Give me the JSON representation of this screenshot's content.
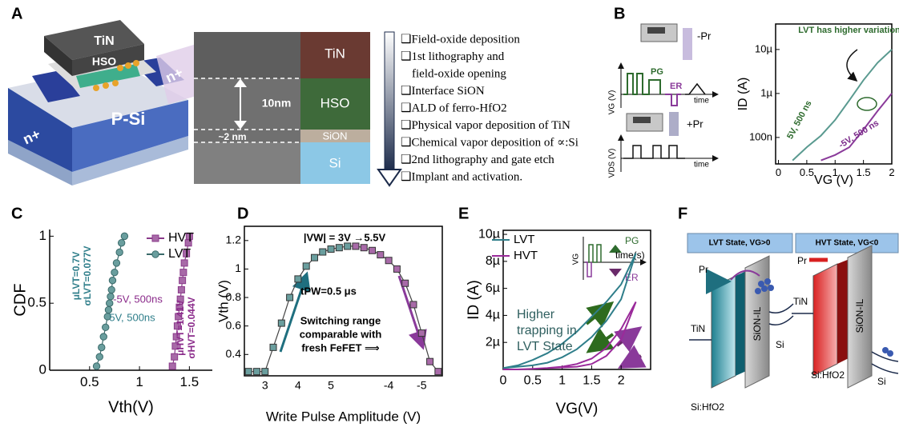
{
  "panel_labels": [
    "A",
    "B",
    "C",
    "D",
    "E",
    "F"
  ],
  "panel_a": {
    "device_labels": [
      "TiN",
      "HSO",
      "n+",
      "P-Si",
      "n+"
    ],
    "tem_labels": [
      "TiN",
      "10nm",
      "HSO",
      "~2 nm",
      "SiON",
      "Si"
    ],
    "process_lines": [
      "❑Field-oxide deposition",
      "❑1st lithography and",
      "field-oxide opening",
      "❑Interface SiON",
      "❑ALD of ferro-HfO2",
      "❑Physical vapor deposition of TiN",
      "❑Chemical vapor deposition of ∝:Si",
      "❑2nd lithography and gate etch",
      "❑Implant and activation."
    ]
  },
  "panel_b_schematic": {
    "labels": [
      "-Pr",
      "VG (V)",
      "PG",
      "ER",
      "time",
      "+Pr",
      "VDS (V)",
      "time"
    ]
  },
  "panel_e_inset": {
    "labels": [
      "PG",
      "time(s)",
      "ER",
      "VG"
    ]
  },
  "panel_f": {
    "headers": [
      "LVT State, VG>0",
      "HVT State, VG<0"
    ],
    "labels": [
      "Pr",
      "TiN",
      "SiON-IL",
      "Si",
      "Si:HfO2",
      "Pr",
      "TiN",
      "SiON-IL",
      "Si",
      "Si:HfO2"
    ]
  },
  "chart_data": [
    {
      "type": "line",
      "xlabel": "VG (V)",
      "ylabel": "ID (A)",
      "log_y": true,
      "xlim": [
        -0.05,
        2
      ],
      "xticks": [
        0,
        0.5,
        1,
        1.5,
        2
      ],
      "ylim": [
        2.5e-08,
        3.8e-05
      ],
      "yticks": [
        {
          "value": 1e-07,
          "label": "100n"
        },
        {
          "value": 1e-06,
          "label": "1µ"
        },
        {
          "value": 1e-05,
          "label": "10µ"
        }
      ],
      "annotations": [
        "LVT has higher variation",
        "5V, 500 ns",
        "-5V, 500 ns"
      ],
      "series": [
        {
          "color": "#5a9a90",
          "x": [
            0.25,
            0.5,
            0.75,
            1,
            1.25,
            1.5,
            1.75,
            2
          ],
          "values": [
            3e-08,
            6e-08,
            1.1e-07,
            2.5e-07,
            7e-07,
            2e-06,
            5e-06,
            1e-05
          ]
        },
        {
          "color": "#8a3a9a",
          "x": [
            0.75,
            1,
            1.25,
            1.5,
            1.75,
            2
          ],
          "values": [
            3e-08,
            4e-08,
            6e-08,
            1.5e-07,
            4e-07,
            1e-06
          ]
        }
      ]
    },
    {
      "type": "line",
      "xlabel": "Vth(V)",
      "ylabel": "CDF",
      "xlim": [
        0.1,
        1.73
      ],
      "xticks": [
        0.5,
        1,
        1.5
      ],
      "ylim": [
        0,
        1.05
      ],
      "yticks": [
        0,
        0.5,
        1
      ],
      "annotations": [
        "μLVT=0.7V",
        "σLVT=0.077V",
        "μHVT=1.41V",
        "σHVT=0.044V",
        "-5V, 500ns",
        "5V, 500ns"
      ],
      "series": [
        {
          "name": "HVT",
          "color": "#8a3a8a",
          "marker": "square",
          "marker_fill": "#a86aa8",
          "x": [
            1.33,
            1.35,
            1.36,
            1.37,
            1.38,
            1.39,
            1.4,
            1.41,
            1.42,
            1.43,
            1.44,
            1.45,
            1.47,
            1.49,
            1.5
          ],
          "values": [
            0.03,
            0.1,
            0.18,
            0.25,
            0.33,
            0.4,
            0.47,
            0.53,
            0.6,
            0.67,
            0.73,
            0.8,
            0.87,
            0.95,
            1
          ]
        },
        {
          "name": "LVT",
          "color": "#3a6a6a",
          "marker": "circle",
          "marker_fill": "#6a9e9e",
          "x": [
            0.57,
            0.6,
            0.62,
            0.64,
            0.66,
            0.68,
            0.69,
            0.7,
            0.71,
            0.72,
            0.73,
            0.75,
            0.77,
            0.8,
            0.82,
            0.85
          ],
          "values": [
            0.03,
            0.1,
            0.17,
            0.25,
            0.32,
            0.4,
            0.45,
            0.5,
            0.55,
            0.6,
            0.67,
            0.73,
            0.8,
            0.88,
            0.95,
            1
          ]
        }
      ]
    },
    {
      "type": "line",
      "xlabel": "Write Pulse Amplitude (V)",
      "ylabel": "Vth (V)",
      "categories": [
        null,
        null,
        "3",
        null,
        null,
        null,
        "4",
        null,
        null,
        null,
        "5",
        null,
        null,
        null,
        null,
        null,
        null,
        "-4",
        null,
        null,
        null,
        "-5",
        null,
        null
      ],
      "values": [
        0.28,
        0.28,
        0.28,
        0.45,
        0.62,
        0.8,
        0.93,
        1.02,
        1.08,
        1.12,
        1.14,
        1.15,
        1.16,
        1.16,
        1.15,
        1.13,
        1.1,
        1.06,
        1.0,
        0.9,
        0.75,
        0.55,
        0.35,
        0.28
      ],
      "point_colors": [
        "#6a9e9e",
        "#6a9e9e",
        "#6a9e9e",
        "#6a9e9e",
        "#6a9e9e",
        "#6a9e9e",
        "#6a9e9e",
        "#6a9e9e",
        "#6a9e9e",
        "#6a9e9e",
        "#6a9e9e",
        "#6a9e9e",
        "#6a9e9e",
        "#a86aa8",
        "#a86aa8",
        "#a86aa8",
        "#a86aa8",
        "#a86aa8",
        "#a86aa8",
        "#a86aa8",
        "#a86aa8",
        "#a86aa8",
        "#a86aa8",
        "#a86aa8"
      ],
      "color": "#444444",
      "ylim": [
        0.25,
        1.3
      ],
      "yticks": [
        0.4,
        0.6,
        0.8,
        1,
        1.2
      ],
      "annotations": [
        "|VW| = 3V →5.5V",
        "tPW=0.5 μs",
        "Switching range",
        "comparable with",
        "fresh FeFET ⟹"
      ]
    },
    {
      "type": "line",
      "xlabel": "VG(V)",
      "ylabel": "ID (A)",
      "xlim": [
        0,
        2.5
      ],
      "xticks": [
        0,
        0.5,
        1,
        1.5,
        2
      ],
      "ylim": [
        0,
        1.03e-05
      ],
      "yticks": [
        {
          "value": 2e-06,
          "label": "2µ"
        },
        {
          "value": 4e-06,
          "label": "4µ"
        },
        {
          "value": 6e-06,
          "label": "6µ"
        },
        {
          "value": 8e-06,
          "label": "8µ"
        },
        {
          "value": 1e-05,
          "label": "10µ"
        }
      ],
      "annotations": [
        "Higher",
        "trapping in",
        "LVT State"
      ],
      "series": [
        {
          "name": "LVT",
          "color": "#2f7e8a",
          "x": [
            0,
            0.25,
            0.5,
            0.75,
            1,
            1.25,
            1.5,
            1.75,
            2,
            2.25,
            2,
            1.75,
            1.5,
            1.25,
            1,
            0.75,
            0.5,
            0.25,
            0
          ],
          "values": [
            1e-07,
            2e-07,
            3e-07,
            5e-07,
            9e-07,
            1.5e-06,
            2.4e-06,
            3.6e-06,
            5.2e-06,
            8.6e-06,
            6.3e-06,
            5e-06,
            3.9e-06,
            2.8e-06,
            1.9e-06,
            1.2e-06,
            7e-07,
            3e-07,
            1e-07
          ]
        },
        {
          "name": "HVT",
          "color": "#9a2a9a",
          "x": [
            0,
            0.25,
            0.5,
            0.75,
            1,
            1.25,
            1.5,
            1.75,
            2,
            2.25,
            2,
            1.75,
            1.5,
            1.25,
            1,
            0.75,
            0.5,
            0.25,
            0
          ],
          "values": [
            0,
            0,
            5e-08,
            1e-07,
            1.5e-07,
            2e-07,
            4e-07,
            1e-06,
            2.2e-06,
            5e-06,
            3e-06,
            1.6e-06,
            8e-07,
            4e-07,
            2e-07,
            1e-07,
            5e-08,
            0,
            0
          ]
        }
      ]
    }
  ]
}
